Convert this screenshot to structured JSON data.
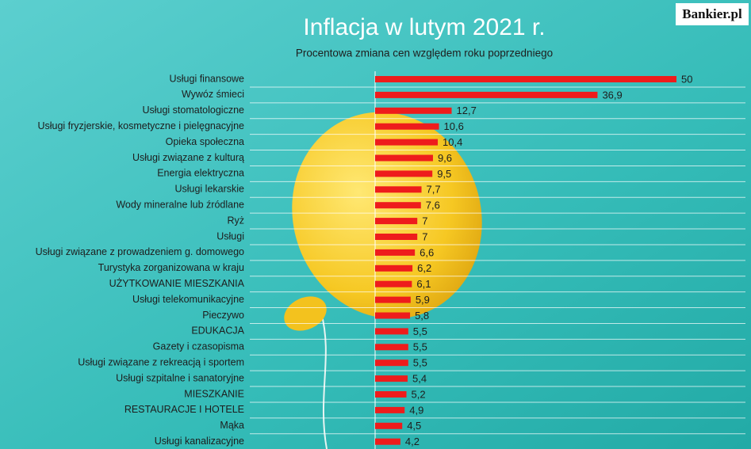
{
  "logo": "Bankier.pl",
  "chart_data": {
    "type": "bar",
    "orientation": "horizontal",
    "title": "Inflacja w lutym 2021 r.",
    "subtitle": "Procentowa zmiana cen względem roku poprzedniego",
    "categories": [
      "Usługi finansowe",
      "Wywóz śmieci",
      "Usługi stomatologiczne",
      "Usługi fryzjerskie, kosmetyczne i pielęgnacyjne",
      "Opieka społeczna",
      "Usługi związane z kulturą",
      "Energia elektryczna",
      "Usługi lekarskie",
      "Wody mineralne lub źródlane",
      "Ryż",
      "Usługi",
      "Usługi związane z prowadzeniem g. domowego",
      "Turystyka zorganizowana w kraju",
      "UŻYTKOWANIE MIESZKANIA",
      "Usługi telekomunikacyjne",
      "Pieczywo",
      "EDUKACJA",
      "Gazety i czasopisma",
      "Usługi związane z rekreacją i sportem",
      "Usługi szpitalne i sanatoryjne",
      "MIESZKANIE",
      "RESTAURACJE I HOTELE",
      "Mąka",
      "Usługi kanalizacyjne"
    ],
    "values": [
      50,
      36.9,
      12.7,
      10.6,
      10.4,
      9.6,
      9.5,
      7.7,
      7.6,
      7,
      7,
      6.6,
      6.2,
      6.1,
      5.9,
      5.8,
      5.5,
      5.5,
      5.5,
      5.4,
      5.2,
      4.9,
      4.5,
      4.2
    ],
    "value_labels": [
      "50",
      "36,9",
      "12,7",
      "10,6",
      "10,4",
      "9,6",
      "9,5",
      "7,7",
      "7,6",
      "7",
      "7",
      "6,6",
      "6,2",
      "6,1",
      "5,9",
      "5,8",
      "5,5",
      "5,5",
      "5,5",
      "5,4",
      "5,2",
      "4,9",
      "4,5",
      "4,2"
    ],
    "color": "#ee1c1c"
  }
}
